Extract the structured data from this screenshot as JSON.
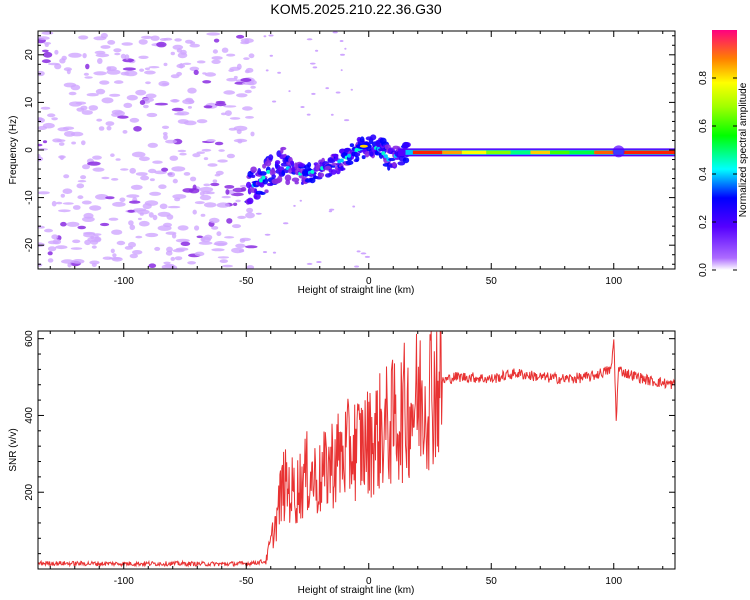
{
  "title": "KOM5.2025.210.22.36.G30",
  "chart_data": [
    {
      "type": "heatmap",
      "xlabel": "Height of straight line (km)",
      "ylabel": "Frequency (Hz)",
      "xlim": [
        -135,
        125
      ],
      "ylim": [
        -25,
        25
      ],
      "xticks": [
        -100,
        -50,
        0,
        50,
        100
      ],
      "yticks": [
        -20,
        -10,
        0,
        10,
        20
      ],
      "colorbar": {
        "label": "Normalized spectral amplitude",
        "range": [
          0,
          1
        ],
        "ticks": [
          "0.0",
          "0.2",
          "0.4",
          "0.6",
          "0.8"
        ],
        "colormap": "rainbow (purple to red)"
      },
      "ridge": [
        {
          "x": -50,
          "y": -8
        },
        {
          "x": -45,
          "y": -7
        },
        {
          "x": -40,
          "y": -4
        },
        {
          "x": -35,
          "y": -3
        },
        {
          "x": -30,
          "y": -5
        },
        {
          "x": -25,
          "y": -5
        },
        {
          "x": -20,
          "y": -4
        },
        {
          "x": -15,
          "y": -3
        },
        {
          "x": -10,
          "y": -2
        },
        {
          "x": -5,
          "y": 0
        },
        {
          "x": 0,
          "y": 1
        },
        {
          "x": 5,
          "y": 0
        },
        {
          "x": 8,
          "y": -2
        },
        {
          "x": 12,
          "y": -1
        },
        {
          "x": 20,
          "y": -0.5
        },
        {
          "x": 125,
          "y": -0.5
        }
      ],
      "grid": false
    },
    {
      "type": "line",
      "xlabel": "Height of straight line (km)",
      "ylabel": "SNR (v/v)",
      "xlim": [
        -135,
        125
      ],
      "ylim": [
        0,
        620
      ],
      "xticks": [
        -100,
        -50,
        0,
        50,
        100
      ],
      "yticks": [
        200,
        400,
        600
      ],
      "series": [
        {
          "color": "#e83232",
          "x": [
            -135,
            -110,
            -80,
            -60,
            -50,
            -42,
            -38,
            -35,
            -30,
            -25,
            -20,
            -15,
            -10,
            -5,
            0,
            5,
            10,
            15,
            20,
            25,
            30,
            35,
            40,
            50,
            60,
            70,
            80,
            90,
            99,
            100,
            101,
            102,
            105,
            110,
            115,
            120,
            125
          ],
          "values": [
            15,
            14,
            14,
            13,
            14,
            20,
            120,
            220,
            200,
            250,
            230,
            280,
            300,
            320,
            330,
            360,
            380,
            410,
            440,
            470,
            490,
            500,
            500,
            495,
            510,
            500,
            495,
            500,
            520,
            600,
            390,
            520,
            510,
            500,
            490,
            485,
            480
          ]
        }
      ],
      "grid": false
    }
  ]
}
